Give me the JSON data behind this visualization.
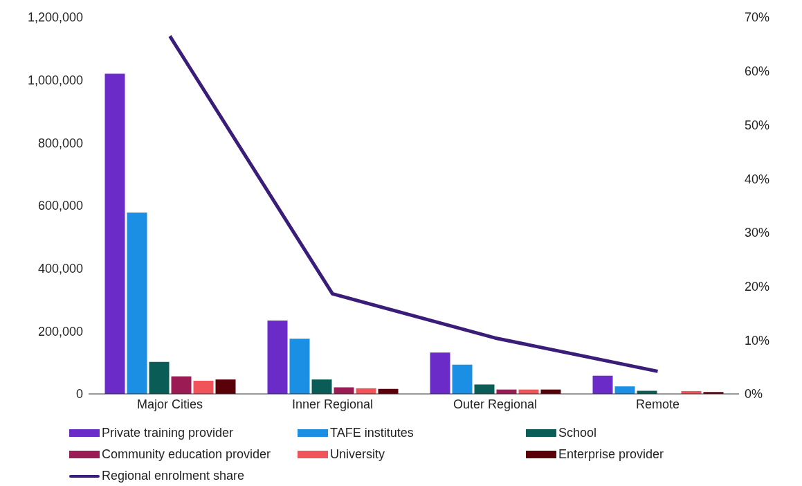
{
  "chart_data": {
    "type": "bar",
    "categories": [
      "Major Cities",
      "Inner Regional",
      "Outer Regional",
      "Remote"
    ],
    "series": [
      {
        "name": "Private training provider",
        "color": "#6a2bc9",
        "values": [
          1020000,
          234000,
          132000,
          58000
        ]
      },
      {
        "name": "TAFE institutes",
        "color": "#1a8fe3",
        "values": [
          578000,
          176000,
          93000,
          24000
        ]
      },
      {
        "name": "School",
        "color": "#0a5c57",
        "values": [
          102000,
          46000,
          30000,
          10000
        ]
      },
      {
        "name": "Community education provider",
        "color": "#9b1b54",
        "values": [
          56000,
          21000,
          14000,
          null
        ]
      },
      {
        "name": "University",
        "color": "#f0545a",
        "values": [
          42000,
          18000,
          14000,
          9000
        ]
      },
      {
        "name": "Enterprise provider",
        "color": "#5a0008",
        "values": [
          46000,
          16000,
          14000,
          6000
        ]
      },
      {
        "name": "Regional enrolment share",
        "type": "line",
        "axis": "y2",
        "color": "#3a1d78",
        "values": [
          66.5,
          18.6,
          10.4,
          4.2
        ]
      }
    ],
    "ylim": [
      0,
      1200000
    ],
    "yticks": [
      0,
      {
        "value": 200000,
        "label": "200,000"
      },
      {
        "value": 400000,
        "label": "400,000"
      },
      {
        "value": 600000,
        "label": "600,000"
      },
      {
        "value": 800000,
        "label": "800,000"
      },
      {
        "value": 1000000,
        "label": "1,000,000"
      },
      {
        "value": 1200000,
        "label": "1,200,000"
      }
    ],
    "y2lim": [
      0,
      70
    ],
    "y2ticks": [
      {
        "value": 0,
        "label": "0%"
      },
      {
        "value": 10,
        "label": "10%"
      },
      {
        "value": 20,
        "label": "20%"
      },
      {
        "value": 30,
        "label": "30%"
      },
      {
        "value": 40,
        "label": "40%"
      },
      {
        "value": 50,
        "label": "50%"
      },
      {
        "value": 60,
        "label": "60%"
      },
      {
        "value": 70,
        "label": "70%"
      }
    ],
    "grid": false,
    "legend": "bottom",
    "marker": "none"
  }
}
